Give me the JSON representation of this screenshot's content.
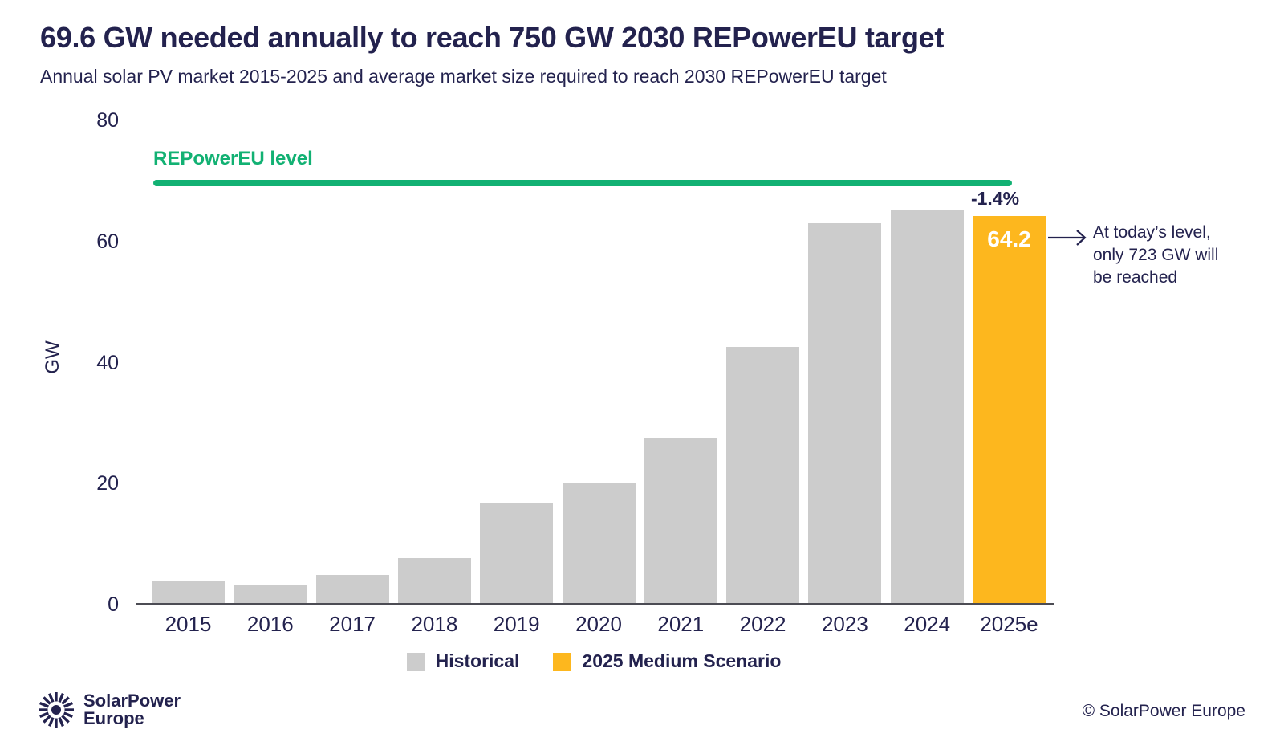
{
  "header": {
    "title": "69.6 GW needed annually to reach 750 GW 2030 REPowerEU target",
    "subtitle": "Annual solar PV market 2015-2025 and average market size required to reach 2030 REPowerEU target"
  },
  "chart_data": {
    "type": "bar",
    "categories": [
      "2015",
      "2016",
      "2017",
      "2018",
      "2019",
      "2020",
      "2021",
      "2022",
      "2023",
      "2024",
      "2025e"
    ],
    "series": [
      {
        "name": "Historical",
        "color": "#CCCCCC",
        "values": [
          3.8,
          3.2,
          4.9,
          7.7,
          16.7,
          20.1,
          27.4,
          42.6,
          63.0,
          65.1,
          null
        ]
      },
      {
        "name": "2025 Medium Scenario",
        "color": "#FDB71E",
        "values": [
          null,
          null,
          null,
          null,
          null,
          null,
          null,
          null,
          null,
          null,
          64.2
        ]
      }
    ],
    "ylabel": "GW",
    "ylim": [
      0,
      80
    ],
    "yticks": [
      0,
      20,
      40,
      60,
      80
    ],
    "grid": false,
    "legend_position": "bottom",
    "reference_line": {
      "label": "REPowerEU level",
      "value": 69.6,
      "color": "#12B173"
    },
    "annotations": {
      "pct_change": "-1.4%",
      "highlight_value": "64.2",
      "note": "At today’s level,\nonly 723 GW will\nbe reached"
    },
    "legend": [
      {
        "label": "Historical",
        "color": "#CCCCCC"
      },
      {
        "label": "2025 Medium Scenario",
        "color": "#FDB71E"
      }
    ]
  },
  "footer": {
    "logo_line1": "SolarPower",
    "logo_line2": "Europe",
    "copyright": "© SolarPower Europe"
  },
  "colors": {
    "navy": "#23224E",
    "gray_bar": "#CCCCCC",
    "orange": "#FDB71E",
    "green": "#12B173",
    "axis": "#4C4C54"
  }
}
